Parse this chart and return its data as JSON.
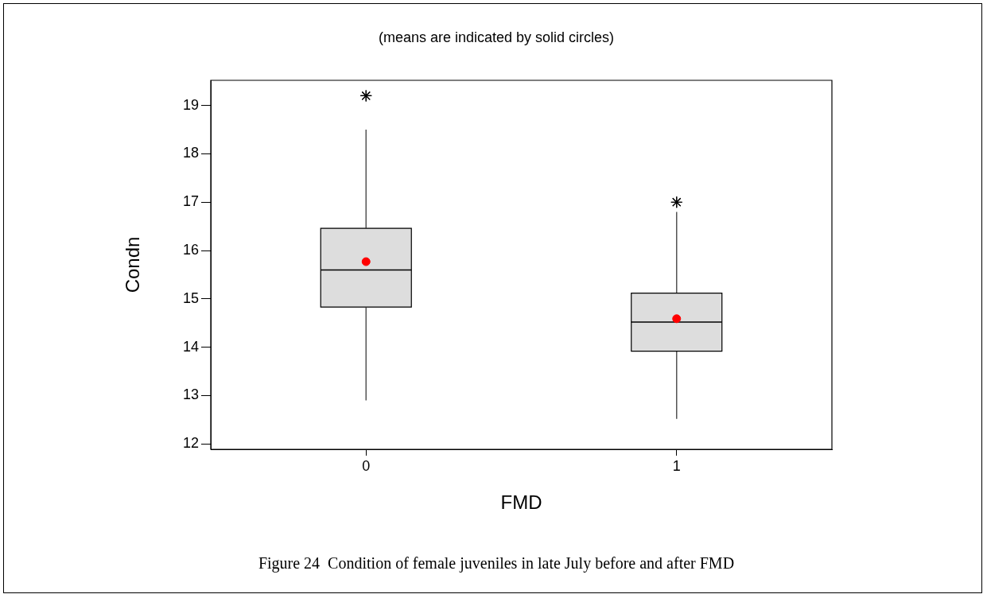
{
  "chart_data": {
    "type": "box",
    "subtitle": "(means are indicated by solid circles)",
    "xlabel": "FMD",
    "ylabel": "Condn",
    "annotations": [
      "Figure 24  Condition of female juveniles in late July before and after FMD"
    ],
    "categories": [
      "0",
      "1"
    ],
    "series": [
      {
        "color": "#dddddd",
        "boxes": [
          {
            "low": 12.9,
            "q1": 14.83,
            "median": 15.6,
            "q3": 16.46,
            "high": 18.5,
            "mean": 15.77,
            "outliers": [
              19.2
            ]
          },
          {
            "low": 12.52,
            "q1": 13.92,
            "median": 14.52,
            "q3": 15.12,
            "high": 16.8,
            "mean": 14.59,
            "outliers": [
              17.0
            ]
          }
        ]
      }
    ],
    "ylim": [
      11.89,
      19.52
    ],
    "yticks": [
      12,
      13,
      14,
      15,
      16,
      17,
      18,
      19
    ],
    "grid": false,
    "legend": false
  }
}
